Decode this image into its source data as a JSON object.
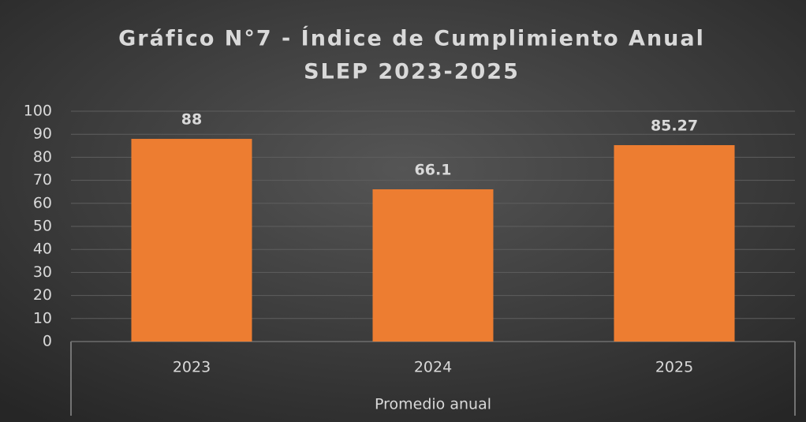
{
  "chart_data": {
    "type": "bar",
    "title": [
      "Gráfico N°7 - Índice de Cumplimiento Anual",
      "SLEP 2023-2025"
    ],
    "categories": [
      "2023",
      "2024",
      "2025"
    ],
    "group_label": "Promedio anual",
    "values": [
      88,
      66.1,
      85.27
    ],
    "color": "#ed7d31",
    "ylim": [
      0,
      100
    ],
    "yticks": [
      0,
      10,
      20,
      30,
      40,
      50,
      60,
      70,
      80,
      90,
      100
    ],
    "grid": true
  }
}
